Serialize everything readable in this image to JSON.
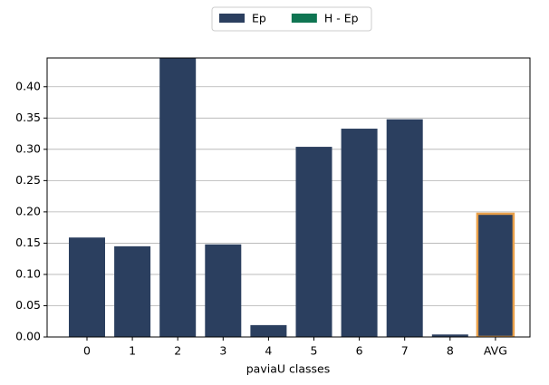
{
  "chart_data": {
    "type": "bar",
    "categories": [
      "0",
      "1",
      "2",
      "3",
      "4",
      "5",
      "6",
      "7",
      "8",
      "AVG"
    ],
    "series": [
      {
        "name": "Ep",
        "color": "#2b3f5f",
        "values": [
          0.159,
          0.145,
          0.45,
          0.148,
          0.019,
          0.304,
          0.333,
          0.348,
          0.004,
          0.197
        ]
      },
      {
        "name": "H - Ep",
        "color": "#0f7552",
        "values": [
          null,
          null,
          null,
          null,
          null,
          null,
          null,
          null,
          null,
          null
        ]
      }
    ],
    "xlabel": "paviaU classes",
    "ylim": [
      0,
      0.446
    ],
    "yticks": [
      {
        "value": 0,
        "label": "0.00"
      },
      {
        "value": 0.05,
        "label": "0.05"
      },
      {
        "value": 0.1,
        "label": "0.10"
      },
      {
        "value": 0.15,
        "label": "0.15"
      },
      {
        "value": 0.2,
        "label": "0.20"
      },
      {
        "value": 0.25,
        "label": "0.25"
      },
      {
        "value": 0.3,
        "label": "0.30"
      },
      {
        "value": 0.35,
        "label": "0.35"
      },
      {
        "value": 0.4,
        "label": "0.40"
      }
    ],
    "grid": true,
    "legend": "top",
    "highlight_index": 9,
    "highlight_color": "#e9a04a"
  }
}
